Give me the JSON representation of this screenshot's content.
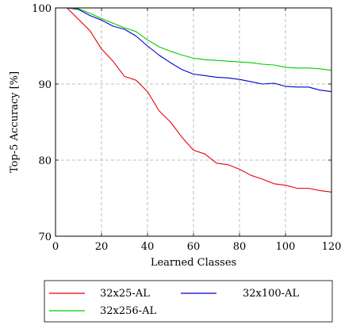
{
  "chart_data": {
    "type": "line",
    "title": "",
    "xlabel": "Learned Classes",
    "ylabel": "Top-5 Accuracy [%]",
    "xlim": [
      0,
      120
    ],
    "ylim": [
      70,
      100
    ],
    "x_ticks": [
      0,
      20,
      40,
      60,
      80,
      100,
      120
    ],
    "y_ticks": [
      70,
      80,
      90,
      100
    ],
    "grid": true,
    "grid_style": "dashed",
    "legend_position": "below",
    "x": [
      0,
      5,
      10,
      15,
      20,
      25,
      30,
      35,
      40,
      45,
      50,
      55,
      60,
      65,
      70,
      75,
      80,
      85,
      90,
      95,
      100,
      105,
      110,
      115,
      120
    ],
    "series": [
      {
        "name": "32x25-AL",
        "color": "#e8000b",
        "values": [
          100,
          100,
          98.5,
          97.0,
          94.6,
          93.0,
          91.0,
          90.5,
          89.0,
          86.5,
          85.0,
          83.0,
          81.3,
          80.8,
          79.6,
          79.4,
          78.8,
          78.0,
          77.5,
          76.9,
          76.7,
          76.3,
          76.3,
          76.0,
          75.8
        ]
      },
      {
        "name": "32x100-AL",
        "color": "#0000cc",
        "values": [
          100,
          100,
          99.8,
          99.0,
          98.4,
          97.6,
          97.2,
          96.3,
          95.0,
          93.8,
          92.8,
          91.9,
          91.3,
          91.1,
          90.9,
          90.8,
          90.6,
          90.3,
          90.0,
          90.1,
          89.7,
          89.6,
          89.6,
          89.2,
          89.0
        ]
      },
      {
        "name": "32x256-AL",
        "color": "#00cc00",
        "values": [
          100,
          100,
          99.9,
          99.3,
          98.6,
          98.0,
          97.4,
          96.9,
          95.8,
          94.9,
          94.3,
          93.8,
          93.4,
          93.2,
          93.1,
          93.0,
          92.9,
          92.8,
          92.6,
          92.5,
          92.2,
          92.1,
          92.1,
          92.0,
          91.8
        ]
      }
    ]
  }
}
